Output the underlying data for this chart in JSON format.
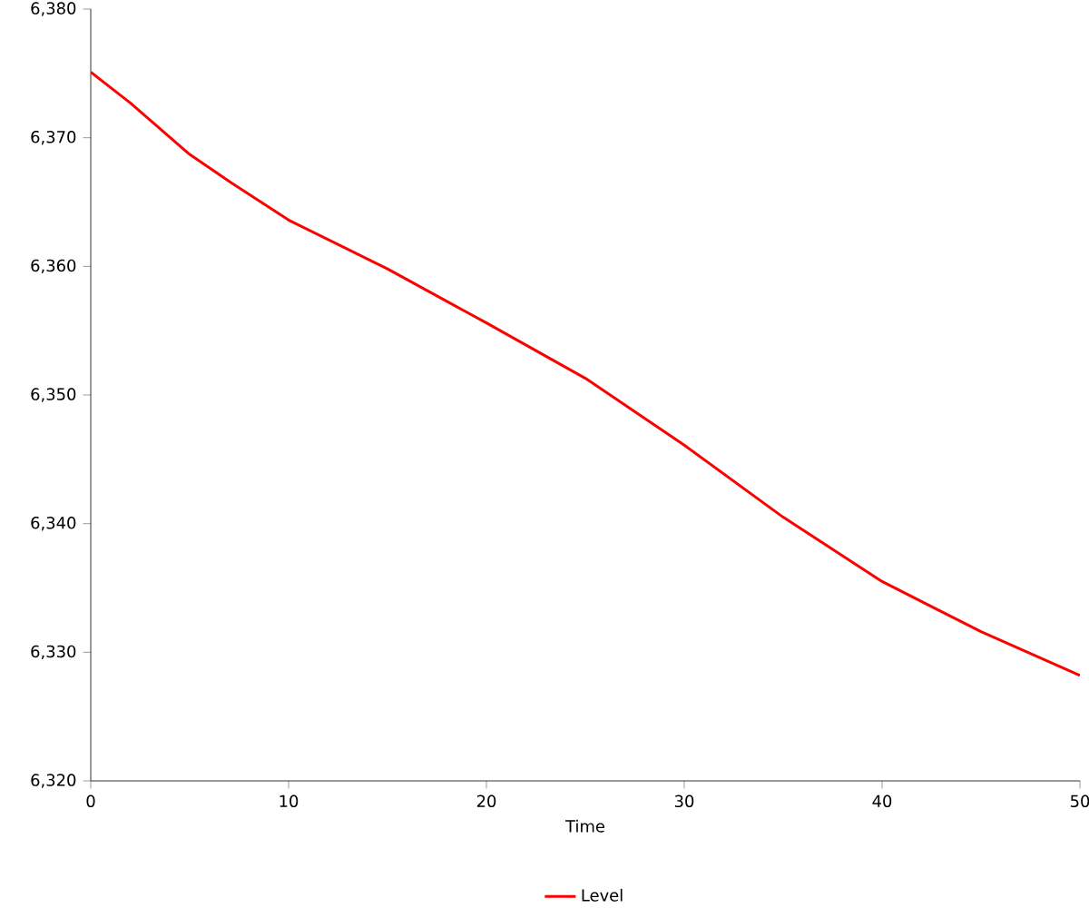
{
  "chart_data": {
    "type": "line",
    "xlabel": "Time",
    "x": [
      0,
      2,
      5,
      7,
      10,
      15,
      20,
      25,
      30,
      35,
      40,
      45,
      50
    ],
    "series": [
      {
        "name": "Level",
        "color": "#ff0000",
        "values": [
          6375.1,
          6372.7,
          6368.7,
          6366.6,
          6363.6,
          6359.8,
          6355.6,
          6351.3,
          6346.1,
          6340.5,
          6335.5,
          6331.6,
          6328.2
        ]
      }
    ],
    "xlim": [
      0,
      50
    ],
    "ylim": [
      6320,
      6380
    ],
    "xticks": [
      0,
      10,
      20,
      30,
      40,
      50
    ],
    "yticks": [
      {
        "value": 6320,
        "label": "6,320"
      },
      {
        "value": 6330,
        "label": "6,330"
      },
      {
        "value": 6340,
        "label": "6,340"
      },
      {
        "value": 6350,
        "label": "6,350"
      },
      {
        "value": 6360,
        "label": "6,360"
      },
      {
        "value": 6370,
        "label": "6,370"
      },
      {
        "value": 6380,
        "label": "6,380"
      }
    ],
    "legend": "bottom",
    "grid": false,
    "marker": "none",
    "line_style": "solid"
  }
}
